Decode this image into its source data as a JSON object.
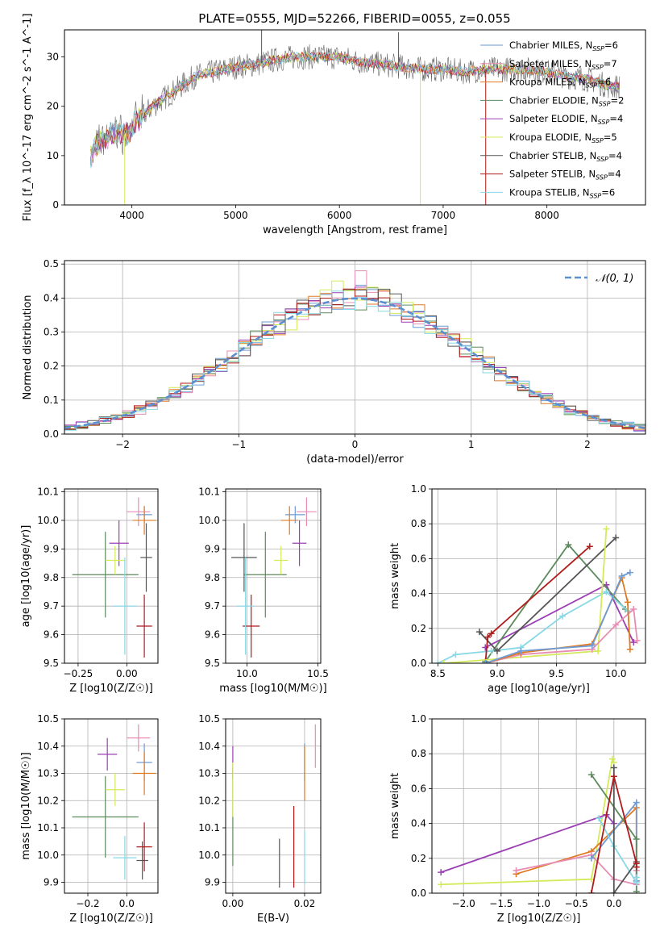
{
  "figure": {
    "title": "PLATE=0555, MJD=52266, FIBERID=0055, z=0.055"
  },
  "colors": {
    "Chabrier MILES": "#6c9bd6",
    "Salpeter MILES": "#e88cb4",
    "Kroupa MILES": "#e07a22",
    "Chabrier ELODIE": "#5c8a5c",
    "Salpeter ELODIE": "#9b3fb4",
    "Kroupa ELODIE": "#d4ea5a",
    "Chabrier STELIB": "#555555",
    "Salpeter STELIB": "#b01b1b",
    "Kroupa STELIB": "#86d8e6",
    "gaussian": "#5b8fd0"
  },
  "chart_data": [
    {
      "id": "spectrum",
      "type": "line",
      "xlabel": "wavelength [Angstrom, rest frame]",
      "ylabel": "Flux [f_λ 10^-17 erg cm^-2 s^-1 A^-1]",
      "xlim": [
        3350,
        8950
      ],
      "ylim": [
        0,
        35.5
      ],
      "xticks": [
        "4000",
        "5000",
        "6000",
        "7000",
        "8000"
      ],
      "yticks": [
        "0",
        "10",
        "20",
        "30"
      ],
      "legend_position": "top-right",
      "legend": [
        {
          "model": "Chabrier MILES",
          "label": "Chabrier MILES, N",
          "n": "=6"
        },
        {
          "model": "Salpeter MILES",
          "label": "Salpeter MILES, N",
          "n": "=7"
        },
        {
          "model": "Kroupa MILES",
          "label": "Kroupa MILES, N",
          "n": "=6"
        },
        {
          "model": "Chabrier ELODIE",
          "label": "Chabrier ELODIE, N",
          "n": "=2"
        },
        {
          "model": "Salpeter ELODIE",
          "label": "Salpeter ELODIE, N",
          "n": "=4"
        },
        {
          "model": "Kroupa ELODIE",
          "label": "Kroupa ELODIE, N",
          "n": "=5"
        },
        {
          "model": "Chabrier STELIB",
          "label": "Chabrier STELIB, N",
          "n": "=4"
        },
        {
          "model": "Salpeter STELIB",
          "label": "Salpeter STELIB, N",
          "n": "=4"
        },
        {
          "model": "Kroupa STELIB",
          "label": "Kroupa STELIB, N",
          "n": "=6"
        }
      ],
      "subscript": "SSP",
      "continuum_knots": [
        [
          3600,
          10
        ],
        [
          3700,
          13
        ],
        [
          3850,
          15
        ],
        [
          3950,
          14
        ],
        [
          4050,
          17
        ],
        [
          4200,
          20
        ],
        [
          4400,
          23
        ],
        [
          4600,
          26
        ],
        [
          4800,
          27
        ],
        [
          5000,
          28
        ],
        [
          5200,
          28.5
        ],
        [
          5400,
          29.5
        ],
        [
          5600,
          30
        ],
        [
          5800,
          30
        ],
        [
          6000,
          30
        ],
        [
          6200,
          29
        ],
        [
          6400,
          28.5
        ],
        [
          6600,
          28
        ],
        [
          6800,
          27.5
        ],
        [
          7000,
          27.5
        ],
        [
          7200,
          27
        ],
        [
          7400,
          27.5
        ],
        [
          7600,
          27.5
        ],
        [
          7800,
          27.5
        ],
        [
          8000,
          27
        ],
        [
          8200,
          26
        ],
        [
          8400,
          25.5
        ],
        [
          8600,
          24
        ],
        [
          8700,
          24
        ]
      ],
      "spikes": [
        {
          "x": 3930,
          "y": 0,
          "model": "Kroupa ELODIE"
        },
        {
          "x": 6780,
          "y": 0,
          "model": "Kroupa ELODIE"
        },
        {
          "x": 7410,
          "y": 0,
          "model": "Salpeter STELIB"
        },
        {
          "x": 5250,
          "y": 35.5,
          "model": "Chabrier STELIB"
        },
        {
          "x": 6570,
          "y": 35,
          "model": "Chabrier STELIB"
        }
      ]
    },
    {
      "id": "residuals",
      "type": "step",
      "xlabel": "(data-model)/error",
      "ylabel": "Normed distribution",
      "xlim": [
        -2.5,
        2.5
      ],
      "ylim": [
        0,
        0.51
      ],
      "xticks": [
        "−2",
        "−1",
        "0",
        "1",
        "2"
      ],
      "yticks": [
        "0.0",
        "0.1",
        "0.2",
        "0.3",
        "0.4",
        "0.5"
      ],
      "bin_width": 0.1,
      "legend_position": "top-right",
      "legend_label": "𝒩(0, 1)",
      "peak_bars": [
        {
          "x": 0.1,
          "y": 0.48,
          "model": "Salpeter MILES"
        },
        {
          "x": -0.1,
          "y": 0.45,
          "model": "Kroupa ELODIE"
        },
        {
          "x": 0.2,
          "y": 0.43,
          "model": "Chabrier ELODIE"
        }
      ]
    },
    {
      "id": "age-vs-z",
      "type": "errorbar",
      "xlabel": "Z [log10(Z/Z☉)]",
      "ylabel": "age  [log10(age/yr)]",
      "xlim": [
        -0.32,
        0.16
      ],
      "ylim": [
        9.5,
        10.11
      ],
      "xticks": [
        {
          "v": -0.25,
          "t": "−0.25"
        },
        {
          "v": 0,
          "t": "0.00"
        }
      ],
      "yticks": [
        "9.5",
        "9.6",
        "9.7",
        "9.8",
        "9.9",
        "10.0",
        "10.1"
      ],
      "points": [
        {
          "model": "Chabrier MILES",
          "x": 0.09,
          "xerr": 0.04,
          "y": 10.02,
          "yerr": 0.03
        },
        {
          "model": "Salpeter MILES",
          "x": 0.06,
          "xerr": 0.06,
          "y": 10.03,
          "yerr": 0.05
        },
        {
          "model": "Kroupa MILES",
          "x": 0.09,
          "xerr": 0.06,
          "y": 10.0,
          "yerr": 0.05
        },
        {
          "model": "Chabrier ELODIE",
          "x": -0.11,
          "xerr": 0.17,
          "y": 9.81,
          "yerr": 0.15
        },
        {
          "model": "Salpeter ELODIE",
          "x": -0.04,
          "xerr": 0.05,
          "y": 9.92,
          "yerr": 0.08
        },
        {
          "model": "Kroupa ELODIE",
          "x": -0.06,
          "xerr": 0.05,
          "y": 9.86,
          "yerr": 0.05
        },
        {
          "model": "Chabrier STELIB",
          "x": 0.1,
          "xerr": 0.03,
          "y": 9.87,
          "yerr": 0.12
        },
        {
          "model": "Salpeter STELIB",
          "x": 0.09,
          "xerr": 0.04,
          "y": 9.63,
          "yerr": 0.11
        },
        {
          "model": "Kroupa STELIB",
          "x": -0.01,
          "xerr": 0.06,
          "y": 9.7,
          "yerr": 0.17
        }
      ]
    },
    {
      "id": "age-vs-mass",
      "type": "errorbar",
      "xlabel": "mass [log10(M/M☉)]",
      "ylabel": "",
      "xlim": [
        9.85,
        10.52
      ],
      "ylim": [
        9.5,
        10.11
      ],
      "xticks": [
        {
          "v": 10.0,
          "t": "10.0"
        },
        {
          "v": 10.5,
          "t": "10.5"
        }
      ],
      "yticks": [
        "9.5",
        "9.6",
        "9.7",
        "9.8",
        "9.9",
        "10.0",
        "10.1"
      ],
      "points": [
        {
          "model": "Chabrier MILES",
          "x": 10.34,
          "xerr": 0.07,
          "y": 10.02,
          "yerr": 0.03
        },
        {
          "model": "Salpeter MILES",
          "x": 10.42,
          "xerr": 0.07,
          "y": 10.03,
          "yerr": 0.05
        },
        {
          "model": "Kroupa MILES",
          "x": 10.3,
          "xerr": 0.06,
          "y": 10.0,
          "yerr": 0.05
        },
        {
          "model": "Chabrier ELODIE",
          "x": 10.13,
          "xerr": 0.15,
          "y": 9.81,
          "yerr": 0.15
        },
        {
          "model": "Salpeter ELODIE",
          "x": 10.37,
          "xerr": 0.05,
          "y": 9.92,
          "yerr": 0.08
        },
        {
          "model": "Kroupa ELODIE",
          "x": 10.24,
          "xerr": 0.05,
          "y": 9.86,
          "yerr": 0.05
        },
        {
          "model": "Chabrier STELIB",
          "x": 9.98,
          "xerr": 0.09,
          "y": 9.87,
          "yerr": 0.12
        },
        {
          "model": "Salpeter STELIB",
          "x": 10.03,
          "xerr": 0.06,
          "y": 9.63,
          "yerr": 0.11
        },
        {
          "model": "Kroupa STELIB",
          "x": 9.99,
          "xerr": 0.06,
          "y": 9.7,
          "yerr": 0.17
        }
      ]
    },
    {
      "id": "weight-vs-age",
      "type": "line",
      "xlabel": "age  [log10(age/yr)]",
      "ylabel": "mass weight",
      "xlim": [
        8.45,
        10.25
      ],
      "ylim": [
        0,
        1
      ],
      "xticks": [
        "8.5",
        "9.0",
        "9.5",
        "10.0"
      ],
      "yticks": [
        "0.0",
        "0.2",
        "0.4",
        "0.6",
        "0.8",
        "1.0"
      ],
      "series": [
        {
          "model": "Salpeter ELODIE",
          "x": [
            8.9,
            9.92,
            10.15
          ],
          "y": [
            0.09,
            0.45,
            0.12
          ]
        },
        {
          "model": "Chabrier ELODIE",
          "x": [
            8.9,
            9.6,
            10.08
          ],
          "y": [
            0.01,
            0.68,
            0.31
          ]
        },
        {
          "model": "Kroupa STELIB",
          "x": [
            8.5,
            8.65,
            8.95,
            9.2,
            9.55,
            9.92,
            10.1
          ],
          "y": [
            0.0,
            0.05,
            0.07,
            0.09,
            0.27,
            0.41,
            0.3
          ]
        },
        {
          "model": "Chabrier STELIB",
          "x": [
            8.85,
            9.0,
            10.0
          ],
          "y": [
            0.18,
            0.07,
            0.72
          ]
        },
        {
          "model": "Salpeter STELIB",
          "x": [
            8.9,
            8.92,
            8.95,
            9.78
          ],
          "y": [
            0.0,
            0.15,
            0.17,
            0.67
          ]
        },
        {
          "model": "Kroupa ELODIE",
          "x": [
            8.55,
            9.85,
            9.92
          ],
          "y": [
            0.0,
            0.07,
            0.77
          ]
        },
        {
          "model": "Salpeter MILES",
          "x": [
            8.9,
            9.2,
            9.8,
            10.0,
            10.15,
            10.18
          ],
          "y": [
            0.0,
            0.05,
            0.08,
            0.22,
            0.31,
            0.13
          ]
        },
        {
          "model": "Kroupa MILES",
          "x": [
            8.9,
            9.2,
            9.8,
            10.05,
            10.1,
            10.12
          ],
          "y": [
            0.0,
            0.06,
            0.11,
            0.49,
            0.35,
            0.08
          ]
        },
        {
          "model": "Chabrier MILES",
          "x": [
            8.9,
            9.2,
            9.8,
            10.05,
            10.12
          ],
          "y": [
            0.0,
            0.07,
            0.1,
            0.5,
            0.52
          ]
        }
      ]
    },
    {
      "id": "mass-vs-z",
      "type": "errorbar",
      "xlabel": "Z [log10(Z/Z☉)]",
      "ylabel": "mass [log10(M/M☉)]",
      "xlim": [
        -0.32,
        0.16
      ],
      "ylim": [
        9.86,
        10.5
      ],
      "xticks": [
        {
          "v": -0.2,
          "t": "−0.2"
        },
        {
          "v": 0,
          "t": "0.0"
        }
      ],
      "yticks": [
        "9.9",
        "10.0",
        "10.1",
        "10.2",
        "10.3",
        "10.4",
        "10.5"
      ],
      "points": [
        {
          "model": "Chabrier MILES",
          "x": 0.09,
          "xerr": 0.04,
          "y": 10.34,
          "yerr": 0.07
        },
        {
          "model": "Salpeter MILES",
          "x": 0.06,
          "xerr": 0.06,
          "y": 10.43,
          "yerr": 0.05
        },
        {
          "model": "Kroupa MILES",
          "x": 0.09,
          "xerr": 0.06,
          "y": 10.3,
          "yerr": 0.08
        },
        {
          "model": "Chabrier ELODIE",
          "x": -0.11,
          "xerr": 0.17,
          "y": 10.14,
          "yerr": 0.15
        },
        {
          "model": "Salpeter ELODIE",
          "x": -0.1,
          "xerr": 0.05,
          "y": 10.37,
          "yerr": 0.06
        },
        {
          "model": "Kroupa ELODIE",
          "x": -0.06,
          "xerr": 0.05,
          "y": 10.24,
          "yerr": 0.06
        },
        {
          "model": "Chabrier STELIB",
          "x": 0.08,
          "xerr": 0.03,
          "y": 9.98,
          "yerr": 0.07
        },
        {
          "model": "Salpeter STELIB",
          "x": 0.09,
          "xerr": 0.04,
          "y": 10.03,
          "yerr": 0.09
        },
        {
          "model": "Kroupa STELIB",
          "x": -0.01,
          "xerr": 0.06,
          "y": 9.99,
          "yerr": 0.08
        }
      ]
    },
    {
      "id": "mass-vs-ebv",
      "type": "errorbar",
      "xlabel": "E(B-V)",
      "ylabel": "",
      "xlim": [
        -0.002,
        0.0245
      ],
      "ylim": [
        9.86,
        10.5
      ],
      "xticks": [
        {
          "v": 0,
          "t": "0.00"
        },
        {
          "v": 0.02,
          "t": "0.02"
        }
      ],
      "yticks": [
        "9.9",
        "10.0",
        "10.1",
        "10.2",
        "10.3",
        "10.4",
        "10.5"
      ],
      "points": [
        {
          "model": "Chabrier MILES",
          "x": 0.02,
          "xerr": 0,
          "y": 10.34,
          "yerr": 0.07
        },
        {
          "model": "Salpeter MILES",
          "x": 0.023,
          "xerr": 0,
          "y": 10.4,
          "yerr": 0.08
        },
        {
          "model": "Kroupa MILES",
          "x": 0.02,
          "xerr": 0,
          "y": 10.3,
          "yerr": 0.1
        },
        {
          "model": "Chabrier ELODIE",
          "x": 0.0,
          "xerr": 0,
          "y": 10.14,
          "yerr": 0.18
        },
        {
          "model": "Salpeter ELODIE",
          "x": 0.0,
          "xerr": 0,
          "y": 10.34,
          "yerr": 0.06
        },
        {
          "model": "Kroupa ELODIE",
          "x": 0.0,
          "xerr": 0,
          "y": 10.24,
          "yerr": 0.1
        },
        {
          "model": "Chabrier STELIB",
          "x": 0.013,
          "xerr": 0,
          "y": 9.97,
          "yerr": 0.09
        },
        {
          "model": "Salpeter STELIB",
          "x": 0.017,
          "xerr": 0,
          "y": 10.03,
          "yerr": 0.15
        },
        {
          "model": "Kroupa STELIB",
          "x": 0.02,
          "xerr": 0,
          "y": 9.99,
          "yerr": 0.1
        }
      ]
    },
    {
      "id": "weight-vs-z",
      "type": "line",
      "xlabel": "Z [log10(Z/Z☉)]",
      "ylabel": "mass weight",
      "xlim": [
        -2.42,
        0.42
      ],
      "ylim": [
        0,
        1
      ],
      "xticks": [
        {
          "v": -2.0,
          "t": "−2.0"
        },
        {
          "v": -1.5,
          "t": "−1.5"
        },
        {
          "v": -1.0,
          "t": "−1.0"
        },
        {
          "v": -0.5,
          "t": "−0.5"
        },
        {
          "v": 0,
          "t": "0.0"
        }
      ],
      "yticks": [
        "0.0",
        "0.2",
        "0.4",
        "0.6",
        "0.8",
        "1.0"
      ],
      "series": [
        {
          "model": "Kroupa ELODIE",
          "x": [
            -2.3,
            -0.3,
            -0.02,
            0.0
          ],
          "y": [
            0.05,
            0.08,
            0.77,
            0.75
          ]
        },
        {
          "model": "Salpeter ELODIE",
          "x": [
            -2.3,
            -0.1,
            0.0
          ],
          "y": [
            0.12,
            0.45,
            0.4
          ]
        },
        {
          "model": "Kroupa MILES",
          "x": [
            -1.3,
            -0.3,
            0.3,
            0.3
          ],
          "y": [
            0.11,
            0.24,
            0.49,
            0.07
          ]
        },
        {
          "model": "Salpeter MILES",
          "x": [
            -1.3,
            -0.3,
            0.0,
            0.3,
            0.3
          ],
          "y": [
            0.13,
            0.22,
            0.08,
            0.05,
            0.13
          ]
        },
        {
          "model": "Chabrier MILES",
          "x": [
            -0.3,
            0.3,
            0.3
          ],
          "y": [
            0.2,
            0.52,
            0.07
          ]
        },
        {
          "model": "Chabrier ELODIE",
          "x": [
            -0.3,
            0.3,
            0.3
          ],
          "y": [
            0.68,
            0.31,
            0.01
          ]
        },
        {
          "model": "Kroupa STELIB",
          "x": [
            -0.2,
            0.0,
            0.3,
            0.3
          ],
          "y": [
            0.43,
            0.27,
            0.06,
            0.09
          ]
        },
        {
          "model": "Chabrier STELIB",
          "x": [
            0.0,
            0.0,
            0.3
          ],
          "y": [
            0.72,
            0.0,
            0.18
          ]
        },
        {
          "model": "Salpeter STELIB",
          "x": [
            -0.3,
            0.0,
            0.3,
            0.3
          ],
          "y": [
            0.0,
            0.67,
            0.17,
            0.15
          ]
        }
      ]
    }
  ]
}
